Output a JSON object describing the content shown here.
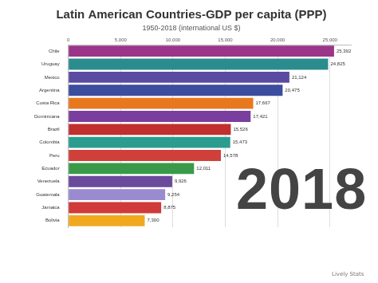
{
  "chart_data": {
    "type": "bar",
    "title": "Latin American Countries-GDP per capita (PPP)",
    "subtitle": "1950-2018 (international US $)",
    "orientation": "horizontal",
    "categories": [
      "Chile",
      "Uruguay",
      "Mexico",
      "Argentina",
      "Costa Rica",
      "Dominicana",
      "Brazil",
      "Colombia",
      "Peru",
      "Ecuador",
      "Venezuela",
      "Guatemala",
      "Jamaica",
      "Bolivia"
    ],
    "values": [
      25392,
      24825,
      21124,
      20475,
      17667,
      17421,
      15526,
      15473,
      14578,
      12011,
      9926,
      9254,
      8875,
      7300
    ],
    "value_labels": [
      "25,392",
      "24,825",
      "21,124",
      "20,475",
      "17,667",
      "17,421",
      "15,526",
      "15,473",
      "14,578",
      "12,011",
      "9,926",
      "9,254",
      "8,875",
      "7,300"
    ],
    "colors": [
      "#9b3589",
      "#2b8c8e",
      "#5b4aa2",
      "#3b4d9e",
      "#e8781e",
      "#7a3f9e",
      "#c0302e",
      "#2a9d8f",
      "#d0403a",
      "#3a9a4a",
      "#6a4a9a",
      "#9a8ad0",
      "#d03a3a",
      "#f0a81e"
    ],
    "data_labels": true,
    "xlim": [
      0,
      27000
    ],
    "xticks": [
      0,
      {
        "value": 5000,
        "label": "5,000"
      },
      {
        "value": 10000,
        "label": "10,000"
      },
      {
        "value": 15000,
        "label": "15,000"
      },
      {
        "value": 20000,
        "label": "20,000"
      },
      {
        "value": 25000,
        "label": "25,000"
      }
    ],
    "grid": true,
    "annotations": [
      "2018",
      "Lively Stats"
    ]
  }
}
